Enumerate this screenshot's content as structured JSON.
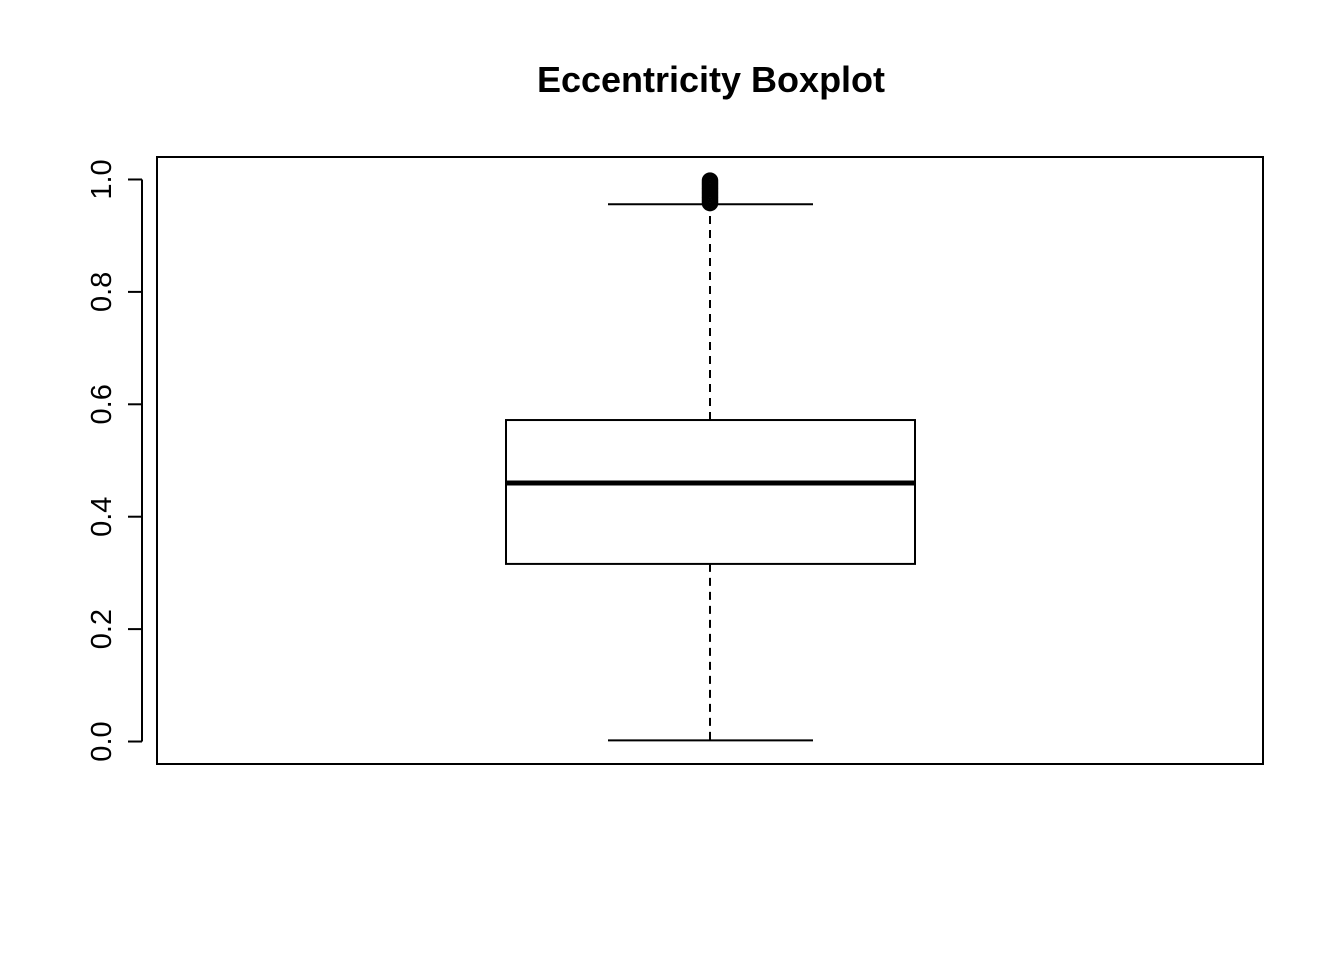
{
  "chart_data": {
    "type": "boxplot",
    "title": "Eccentricity Boxplot",
    "xlabel": "",
    "ylabel": "",
    "ylim": [
      -0.04,
      1.04
    ],
    "yticks": [
      0.0,
      0.2,
      0.4,
      0.6,
      0.8,
      1.0
    ],
    "ytick_labels": [
      "0.0",
      "0.2",
      "0.4",
      "0.6",
      "0.8",
      "1.0"
    ],
    "grid": false,
    "box": {
      "min_whisker": 0.002,
      "q1": 0.316,
      "median": 0.46,
      "q3": 0.572,
      "max_whisker": 0.956
    },
    "outliers": [
      0.958,
      0.962,
      0.966,
      0.97,
      0.974,
      0.978,
      0.982,
      0.986,
      0.99,
      0.994,
      0.998
    ],
    "colors": {
      "box_fill": "#ffffff",
      "stroke": "#000000"
    }
  }
}
